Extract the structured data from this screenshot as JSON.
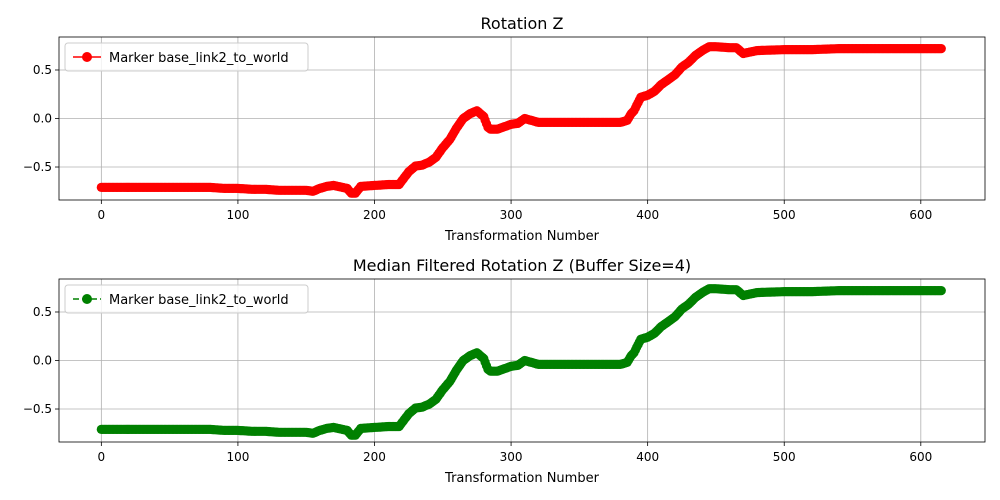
{
  "chart_data": [
    {
      "type": "line",
      "title": "Rotation Z",
      "xlabel": "Transformation Number",
      "ylabel": "",
      "xlim": [
        -31,
        647
      ],
      "ylim": [
        -0.84,
        0.84
      ],
      "xticks": [
        0,
        100,
        200,
        300,
        400,
        500,
        600
      ],
      "yticks": [
        -0.5,
        0.0,
        0.5
      ],
      "ytick_labels": [
        "−0.5",
        "0.0",
        "0.5"
      ],
      "grid": true,
      "legend_position": "top-left",
      "marker": "circle",
      "line_style": "solid",
      "series": [
        {
          "name": "Marker base_link2_to_world",
          "color": "#ff0000",
          "x": [
            0,
            20,
            40,
            60,
            80,
            90,
            100,
            110,
            120,
            130,
            140,
            150,
            155,
            160,
            165,
            170,
            180,
            183,
            186,
            190,
            200,
            210,
            218,
            225,
            230,
            235,
            240,
            245,
            250,
            255,
            260,
            265,
            270,
            275,
            280,
            283,
            285,
            290,
            300,
            305,
            310,
            320,
            330,
            340,
            360,
            380,
            385,
            388,
            390,
            395,
            400,
            405,
            410,
            415,
            420,
            425,
            430,
            435,
            440,
            445,
            450,
            460,
            465,
            470,
            480,
            500,
            520,
            540,
            560,
            580,
            600,
            615
          ],
          "y": [
            -0.71,
            -0.71,
            -0.71,
            -0.71,
            -0.71,
            -0.72,
            -0.72,
            -0.73,
            -0.73,
            -0.74,
            -0.74,
            -0.74,
            -0.75,
            -0.72,
            -0.7,
            -0.69,
            -0.72,
            -0.77,
            -0.77,
            -0.7,
            -0.69,
            -0.68,
            -0.68,
            -0.55,
            -0.49,
            -0.48,
            -0.45,
            -0.4,
            -0.3,
            -0.22,
            -0.1,
            0.0,
            0.05,
            0.08,
            0.02,
            -0.09,
            -0.11,
            -0.11,
            -0.06,
            -0.05,
            0.0,
            -0.04,
            -0.04,
            -0.04,
            -0.04,
            -0.04,
            -0.02,
            0.05,
            0.08,
            0.22,
            0.24,
            0.28,
            0.35,
            0.4,
            0.45,
            0.53,
            0.58,
            0.65,
            0.7,
            0.74,
            0.74,
            0.73,
            0.73,
            0.67,
            0.7,
            0.71,
            0.71,
            0.72,
            0.72,
            0.72,
            0.72,
            0.72
          ]
        }
      ]
    },
    {
      "type": "line",
      "title": "Median Filtered Rotation Z (Buffer Size=4)",
      "xlabel": "Transformation Number",
      "ylabel": "",
      "xlim": [
        -31,
        647
      ],
      "ylim": [
        -0.84,
        0.84
      ],
      "xticks": [
        0,
        100,
        200,
        300,
        400,
        500,
        600
      ],
      "yticks": [
        -0.5,
        0.0,
        0.5
      ],
      "ytick_labels": [
        "−0.5",
        "0.0",
        "0.5"
      ],
      "grid": true,
      "legend_position": "top-left",
      "marker": "circle",
      "line_style": "dashed",
      "series": [
        {
          "name": "Marker base_link2_to_world",
          "color": "#008000",
          "x": [
            0,
            20,
            40,
            60,
            80,
            90,
            100,
            110,
            120,
            130,
            140,
            150,
            155,
            160,
            165,
            170,
            180,
            183,
            186,
            190,
            200,
            210,
            218,
            225,
            230,
            235,
            240,
            245,
            250,
            255,
            260,
            265,
            270,
            275,
            280,
            283,
            285,
            290,
            300,
            305,
            310,
            320,
            330,
            340,
            360,
            380,
            385,
            388,
            390,
            395,
            400,
            405,
            410,
            415,
            420,
            425,
            430,
            435,
            440,
            445,
            450,
            460,
            465,
            470,
            480,
            500,
            520,
            540,
            560,
            580,
            600,
            615
          ],
          "y": [
            -0.71,
            -0.71,
            -0.71,
            -0.71,
            -0.71,
            -0.72,
            -0.72,
            -0.73,
            -0.73,
            -0.74,
            -0.74,
            -0.74,
            -0.75,
            -0.72,
            -0.7,
            -0.69,
            -0.72,
            -0.77,
            -0.77,
            -0.7,
            -0.69,
            -0.68,
            -0.68,
            -0.55,
            -0.49,
            -0.48,
            -0.45,
            -0.4,
            -0.3,
            -0.22,
            -0.1,
            0.0,
            0.05,
            0.08,
            0.02,
            -0.09,
            -0.11,
            -0.11,
            -0.06,
            -0.05,
            0.0,
            -0.04,
            -0.04,
            -0.04,
            -0.04,
            -0.04,
            -0.02,
            0.05,
            0.08,
            0.22,
            0.24,
            0.28,
            0.35,
            0.4,
            0.45,
            0.53,
            0.58,
            0.65,
            0.7,
            0.74,
            0.74,
            0.73,
            0.73,
            0.67,
            0.7,
            0.71,
            0.71,
            0.72,
            0.72,
            0.72,
            0.72,
            0.72
          ]
        }
      ]
    }
  ]
}
